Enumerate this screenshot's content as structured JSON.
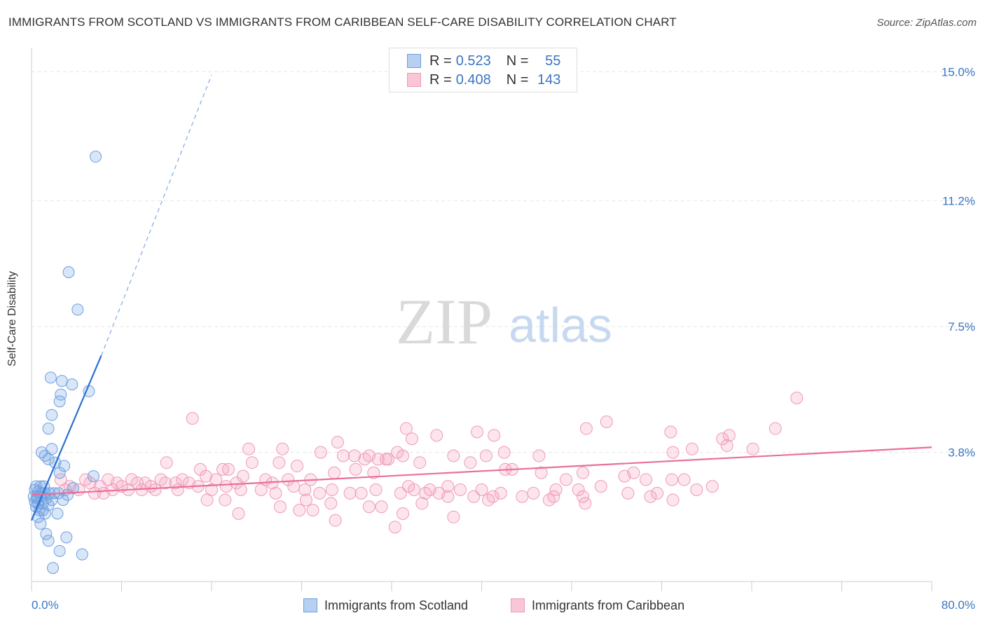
{
  "title": "IMMIGRANTS FROM SCOTLAND VS IMMIGRANTS FROM CARIBBEAN SELF-CARE DISABILITY CORRELATION CHART",
  "source": "Source: ZipAtlas.com",
  "watermark": {
    "zip": "ZIP",
    "atlas": "atlas"
  },
  "colors": {
    "scotland": "#6d9fe0",
    "scotland_line": "#2a6fd6",
    "caribbean": "#f09ab8",
    "caribbean_line": "#e8709a",
    "value_text": "#3a75c4"
  },
  "legend": {
    "rows": [
      {
        "r_label": "R =",
        "r_value": "0.523",
        "n_label": "N =",
        "n_value": "55"
      },
      {
        "r_label": "R =",
        "r_value": "0.408",
        "n_label": "N =",
        "n_value": "143"
      }
    ]
  },
  "chart_data": {
    "type": "scatter",
    "ylabel": "Self-Care Disability",
    "xlim": [
      0,
      80
    ],
    "ylim": [
      0,
      15.5
    ],
    "x_tick_labels": [
      "0.0%",
      "80.0%"
    ],
    "y_ticks": [
      3.8,
      7.5,
      11.2,
      15.0
    ],
    "y_tick_labels": [
      "3.8%",
      "7.5%",
      "11.2%",
      "15.0%"
    ],
    "grid": true,
    "series": [
      {
        "name": "Immigrants from Scotland",
        "trend": {
          "x": [
            0,
            6.2
          ],
          "y": [
            1.8,
            6.65
          ],
          "dashed_to": {
            "x": 16,
            "y": 14.9
          }
        },
        "points": [
          [
            5.7,
            12.5
          ],
          [
            3.3,
            9.1
          ],
          [
            4.1,
            8.0
          ],
          [
            1.7,
            6.0
          ],
          [
            2.7,
            5.9
          ],
          [
            3.6,
            5.8
          ],
          [
            5.1,
            5.6
          ],
          [
            2.6,
            5.5
          ],
          [
            2.5,
            5.3
          ],
          [
            1.8,
            4.9
          ],
          [
            1.5,
            4.5
          ],
          [
            1.8,
            3.9
          ],
          [
            0.9,
            3.8
          ],
          [
            1.2,
            3.7
          ],
          [
            1.5,
            3.6
          ],
          [
            2.1,
            3.5
          ],
          [
            2.9,
            3.4
          ],
          [
            2.5,
            3.2
          ],
          [
            5.5,
            3.1
          ],
          [
            0.4,
            2.8
          ],
          [
            0.8,
            2.8
          ],
          [
            1.1,
            2.8
          ],
          [
            3.7,
            2.75
          ],
          [
            0.3,
            2.7
          ],
          [
            0.6,
            2.65
          ],
          [
            0.9,
            2.6
          ],
          [
            1.2,
            2.6
          ],
          [
            1.6,
            2.6
          ],
          [
            2.0,
            2.6
          ],
          [
            2.4,
            2.6
          ],
          [
            3.2,
            2.55
          ],
          [
            0.2,
            2.5
          ],
          [
            0.5,
            2.5
          ],
          [
            0.8,
            2.5
          ],
          [
            1.3,
            2.45
          ],
          [
            1.8,
            2.4
          ],
          [
            2.8,
            2.4
          ],
          [
            0.3,
            2.35
          ],
          [
            0.6,
            2.3
          ],
          [
            1.0,
            2.3
          ],
          [
            1.5,
            2.25
          ],
          [
            0.4,
            2.2
          ],
          [
            1.0,
            2.1
          ],
          [
            0.7,
            2.1
          ],
          [
            2.3,
            2.0
          ],
          [
            1.2,
            2.0
          ],
          [
            0.6,
            1.9
          ],
          [
            0.8,
            1.7
          ],
          [
            1.3,
            1.4
          ],
          [
            3.1,
            1.3
          ],
          [
            1.5,
            1.2
          ],
          [
            2.5,
            0.9
          ],
          [
            4.5,
            0.8
          ],
          [
            1.9,
            0.4
          ],
          [
            0.5,
            2.45
          ]
        ]
      },
      {
        "name": "Immigrants from Caribbean",
        "trend": {
          "x": [
            0,
            80
          ],
          "y": [
            2.55,
            3.95
          ]
        },
        "points": [
          [
            68.0,
            5.4
          ],
          [
            51.1,
            4.7
          ],
          [
            66.1,
            4.5
          ],
          [
            49.3,
            4.5
          ],
          [
            61.4,
            4.2
          ],
          [
            61.8,
            4.0
          ],
          [
            64.1,
            3.9
          ],
          [
            62.0,
            4.3
          ],
          [
            58.7,
            3.9
          ],
          [
            56.8,
            4.4
          ],
          [
            45.1,
            3.7
          ],
          [
            57.0,
            3.8
          ],
          [
            33.3,
            4.5
          ],
          [
            33.8,
            4.2
          ],
          [
            39.6,
            4.4
          ],
          [
            41.1,
            4.3
          ],
          [
            36.0,
            4.3
          ],
          [
            34.5,
            3.5
          ],
          [
            31.7,
            3.6
          ],
          [
            39.0,
            3.5
          ],
          [
            42.1,
            3.3
          ],
          [
            14.3,
            4.8
          ],
          [
            12.0,
            3.5
          ],
          [
            17.0,
            3.3
          ],
          [
            17.5,
            3.3
          ],
          [
            19.6,
            3.5
          ],
          [
            19.3,
            3.9
          ],
          [
            22.0,
            3.5
          ],
          [
            22.3,
            3.9
          ],
          [
            23.6,
            3.4
          ],
          [
            25.7,
            3.8
          ],
          [
            27.2,
            4.1
          ],
          [
            27.7,
            3.7
          ],
          [
            28.7,
            3.7
          ],
          [
            29.6,
            3.6
          ],
          [
            30.0,
            3.7
          ],
          [
            30.8,
            3.6
          ],
          [
            31.5,
            3.6
          ],
          [
            32.5,
            3.8
          ],
          [
            33.0,
            3.7
          ],
          [
            37.5,
            3.7
          ],
          [
            42.7,
            3.3
          ],
          [
            40.4,
            3.7
          ],
          [
            42.0,
            3.8
          ],
          [
            45.3,
            3.2
          ],
          [
            47.5,
            3.0
          ],
          [
            49.0,
            3.2
          ],
          [
            52.7,
            3.1
          ],
          [
            53.5,
            3.2
          ],
          [
            56.9,
            3.0
          ],
          [
            58.0,
            3.0
          ],
          [
            54.6,
            3.0
          ],
          [
            30.4,
            3.2
          ],
          [
            28.8,
            3.3
          ],
          [
            26.9,
            3.2
          ],
          [
            24.8,
            3.0
          ],
          [
            18.8,
            3.1
          ],
          [
            20.8,
            3.0
          ],
          [
            21.4,
            2.9
          ],
          [
            22.8,
            3.0
          ],
          [
            15.0,
            3.3
          ],
          [
            15.5,
            3.1
          ],
          [
            16.4,
            3.0
          ],
          [
            18.2,
            2.9
          ],
          [
            11.5,
            3.0
          ],
          [
            11.9,
            2.9
          ],
          [
            12.8,
            2.9
          ],
          [
            13.4,
            3.0
          ],
          [
            14.0,
            2.9
          ],
          [
            10.1,
            2.9
          ],
          [
            10.6,
            2.8
          ],
          [
            8.9,
            3.0
          ],
          [
            9.4,
            2.9
          ],
          [
            7.6,
            2.9
          ],
          [
            8.0,
            2.8
          ],
          [
            6.8,
            3.0
          ],
          [
            5.2,
            2.9
          ],
          [
            6.1,
            2.8
          ],
          [
            4.8,
            3.0
          ],
          [
            3.4,
            2.8
          ],
          [
            2.6,
            3.0
          ],
          [
            3.0,
            2.7
          ],
          [
            4.2,
            2.7
          ],
          [
            5.6,
            2.6
          ],
          [
            6.4,
            2.6
          ],
          [
            7.2,
            2.7
          ],
          [
            8.6,
            2.7
          ],
          [
            9.8,
            2.7
          ],
          [
            11.0,
            2.7
          ],
          [
            13.0,
            2.7
          ],
          [
            14.8,
            2.8
          ],
          [
            16.0,
            2.7
          ],
          [
            17.3,
            2.8
          ],
          [
            18.6,
            2.7
          ],
          [
            20.4,
            2.7
          ],
          [
            21.7,
            2.6
          ],
          [
            23.3,
            2.8
          ],
          [
            24.3,
            2.7
          ],
          [
            25.6,
            2.6
          ],
          [
            26.7,
            2.7
          ],
          [
            28.3,
            2.6
          ],
          [
            29.3,
            2.6
          ],
          [
            30.6,
            2.7
          ],
          [
            32.8,
            2.6
          ],
          [
            34.0,
            2.7
          ],
          [
            35.4,
            2.7
          ],
          [
            37.0,
            2.8
          ],
          [
            38.1,
            2.7
          ],
          [
            40.0,
            2.7
          ],
          [
            41.7,
            2.6
          ],
          [
            44.6,
            2.6
          ],
          [
            46.6,
            2.7
          ],
          [
            48.6,
            2.7
          ],
          [
            50.6,
            2.8
          ],
          [
            53.0,
            2.6
          ],
          [
            55.6,
            2.6
          ],
          [
            59.1,
            2.7
          ],
          [
            60.5,
            2.8
          ],
          [
            33.5,
            2.8
          ],
          [
            35.0,
            2.6
          ],
          [
            36.2,
            2.6
          ],
          [
            39.3,
            2.5
          ],
          [
            41.0,
            2.5
          ],
          [
            43.6,
            2.5
          ],
          [
            46.0,
            2.4
          ],
          [
            49.2,
            2.3
          ],
          [
            34.7,
            2.3
          ],
          [
            30.0,
            2.2
          ],
          [
            22.1,
            2.2
          ],
          [
            24.4,
            2.4
          ],
          [
            26.6,
            2.3
          ],
          [
            31.1,
            2.2
          ],
          [
            33.0,
            2.0
          ],
          [
            37.5,
            1.9
          ],
          [
            37.0,
            2.5
          ],
          [
            40.6,
            2.4
          ],
          [
            46.4,
            2.5
          ],
          [
            49.0,
            2.5
          ],
          [
            55.0,
            2.5
          ],
          [
            57.0,
            2.4
          ],
          [
            15.6,
            2.4
          ],
          [
            17.2,
            2.4
          ],
          [
            18.4,
            2.0
          ],
          [
            23.8,
            2.1
          ],
          [
            25.0,
            2.1
          ],
          [
            27.0,
            1.8
          ],
          [
            32.3,
            1.6
          ]
        ]
      }
    ]
  },
  "bottom_legend": {
    "scotland": "Immigrants from Scotland",
    "caribbean": "Immigrants from Caribbean"
  }
}
